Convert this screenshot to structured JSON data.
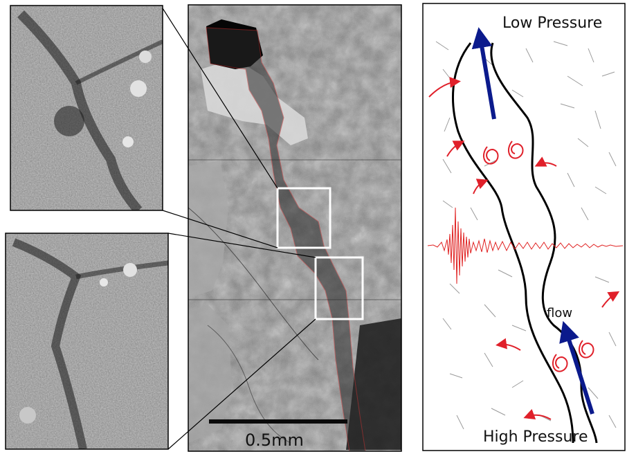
{
  "diagram": {
    "scale_bar": {
      "label": "0.5mm"
    },
    "schematic": {
      "top_label": "Low Pressure",
      "bottom_label": "High Pressure",
      "flow_label": "flow"
    },
    "colors": {
      "flow_arrow": "#0b1a8c",
      "eddies": "#e0202a",
      "seismic_trace": "#e02020",
      "grain_outline": "#c23030",
      "channel_walls": "#000000",
      "frame": "#000000"
    }
  }
}
